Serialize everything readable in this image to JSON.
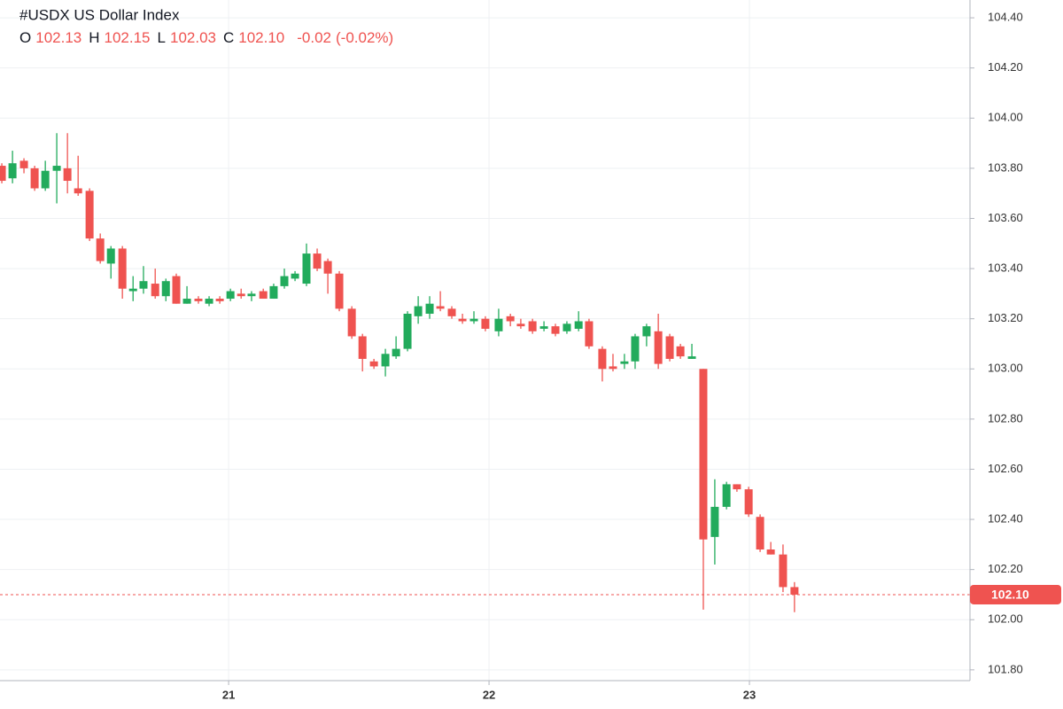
{
  "header": {
    "title": "#USDX US Dollar Index",
    "ohlc": [
      {
        "name": "O",
        "value": "102.13"
      },
      {
        "name": "H",
        "value": "102.15"
      },
      {
        "name": "L",
        "value": "102.03"
      },
      {
        "name": "C",
        "value": "102.10"
      }
    ],
    "change": "-0.02",
    "change_percent": "(-0.02%)"
  },
  "chart_data": {
    "type": "candlestick",
    "up_color": "#22ab5c",
    "down_color": "#ef5350",
    "grid": true,
    "x": [
      20.129,
      20.17,
      20.214,
      20.255,
      20.296,
      20.34,
      20.381,
      20.422,
      20.466,
      20.507,
      20.548,
      20.592,
      20.633,
      20.673,
      20.718,
      20.759,
      20.799,
      20.84,
      20.884,
      20.925,
      20.966,
      21.007,
      21.048,
      21.088,
      21.133,
      21.173,
      21.214,
      21.255,
      21.299,
      21.34,
      21.381,
      21.425,
      21.473,
      21.514,
      21.558,
      21.602,
      21.643,
      21.687,
      21.728,
      21.772,
      21.813,
      21.857,
      21.898,
      21.942,
      21.986,
      22.037,
      22.082,
      22.122,
      22.167,
      22.211,
      22.255,
      22.299,
      22.344,
      22.384,
      22.435,
      22.476,
      22.52,
      22.561,
      22.605,
      22.65,
      22.694,
      22.735,
      22.779,
      22.823,
      22.867,
      22.912,
      22.952,
      22.997,
      23.041,
      23.082,
      23.129,
      23.173
    ],
    "open": [
      103.81,
      103.76,
      103.83,
      103.8,
      103.72,
      103.79,
      103.8,
      103.72,
      103.71,
      103.52,
      103.42,
      103.48,
      103.31,
      103.32,
      103.34,
      103.29,
      103.37,
      103.26,
      103.28,
      103.26,
      103.28,
      103.28,
      103.3,
      103.29,
      103.31,
      103.28,
      103.33,
      103.36,
      103.34,
      103.46,
      103.43,
      103.38,
      103.24,
      103.13,
      103.03,
      103.01,
      103.05,
      103.08,
      103.21,
      103.22,
      103.25,
      103.24,
      103.2,
      103.19,
      103.2,
      103.15,
      103.21,
      103.18,
      103.19,
      103.16,
      103.17,
      103.15,
      103.16,
      103.19,
      103.08,
      103.01,
      103.02,
      103.03,
      103.13,
      103.15,
      103.13,
      103.09,
      103.04,
      103.0,
      102.33,
      102.45,
      102.54,
      102.52,
      102.41,
      102.28,
      102.26,
      102.13
    ],
    "high": [
      103.82,
      103.87,
      103.84,
      103.81,
      103.83,
      103.94,
      103.94,
      103.85,
      103.72,
      103.54,
      103.49,
      103.49,
      103.37,
      103.41,
      103.4,
      103.36,
      103.38,
      103.33,
      103.29,
      103.29,
      103.29,
      103.32,
      103.32,
      103.31,
      103.32,
      103.34,
      103.4,
      103.39,
      103.5,
      103.48,
      103.44,
      103.39,
      103.25,
      103.14,
      103.04,
      103.08,
      103.13,
      103.23,
      103.29,
      103.29,
      103.31,
      103.25,
      103.22,
      103.23,
      103.21,
      103.24,
      103.22,
      103.2,
      103.2,
      103.19,
      103.18,
      103.19,
      103.23,
      103.2,
      103.09,
      103.06,
      103.06,
      103.14,
      103.18,
      103.22,
      103.14,
      103.1,
      103.1,
      103.0,
      102.56,
      102.55,
      102.54,
      102.53,
      102.42,
      102.31,
      102.3,
      102.15
    ],
    "low": [
      103.74,
      103.74,
      103.78,
      103.71,
      103.71,
      103.66,
      103.7,
      103.69,
      103.51,
      103.42,
      103.36,
      103.28,
      103.27,
      103.3,
      103.28,
      103.27,
      103.26,
      103.26,
      103.26,
      103.25,
      103.26,
      103.27,
      103.28,
      103.27,
      103.28,
      103.28,
      103.32,
      103.35,
      103.33,
      103.39,
      103.3,
      103.23,
      103.12,
      102.99,
      103.0,
      102.97,
      103.04,
      103.07,
      103.18,
      103.2,
      103.23,
      103.2,
      103.18,
      103.18,
      103.15,
      103.13,
      103.17,
      103.16,
      103.14,
      103.15,
      103.13,
      103.14,
      103.15,
      103.08,
      102.95,
      102.99,
      103.0,
      103.0,
      103.09,
      103.0,
      103.03,
      103.04,
      103.04,
      102.04,
      102.22,
      102.44,
      102.51,
      102.41,
      102.27,
      102.26,
      102.11,
      102.03
    ],
    "close": [
      103.75,
      103.82,
      103.8,
      103.72,
      103.79,
      103.81,
      103.75,
      103.7,
      103.52,
      103.43,
      103.48,
      103.32,
      103.32,
      103.35,
      103.29,
      103.35,
      103.26,
      103.28,
      103.27,
      103.28,
      103.27,
      103.31,
      103.29,
      103.3,
      103.28,
      103.33,
      103.37,
      103.38,
      103.46,
      103.4,
      103.38,
      103.24,
      103.13,
      103.04,
      103.01,
      103.06,
      103.08,
      103.22,
      103.25,
      103.26,
      103.24,
      103.21,
      103.19,
      103.2,
      103.16,
      103.2,
      103.19,
      103.17,
      103.15,
      103.17,
      103.14,
      103.18,
      103.19,
      103.09,
      103.0,
      103.0,
      103.03,
      103.13,
      103.17,
      103.02,
      103.04,
      103.05,
      103.05,
      102.32,
      102.45,
      102.54,
      102.52,
      102.42,
      102.28,
      102.26,
      102.13,
      102.1
    ],
    "last_label": "102.10",
    "xlim": [
      20.122,
      23.847
    ],
    "xticks": [
      21,
      22,
      23
    ],
    "ylim": [
      101.757,
      104.471
    ],
    "yticks": [
      {
        "value": 101.8,
        "label": "101.80"
      },
      {
        "value": 102.0,
        "label": "102.00"
      },
      {
        "value": 102.2,
        "label": "102.20"
      },
      {
        "value": 102.4,
        "label": "102.40"
      },
      {
        "value": 102.6,
        "label": "102.60"
      },
      {
        "value": 102.8,
        "label": "102.80"
      },
      {
        "value": 103.0,
        "label": "103.00"
      },
      {
        "value": 103.2,
        "label": "103.20"
      },
      {
        "value": 103.4,
        "label": "103.40"
      },
      {
        "value": 103.6,
        "label": "103.60"
      },
      {
        "value": 103.8,
        "label": "103.80"
      },
      {
        "value": 104.0,
        "label": "104.00"
      },
      {
        "value": 104.2,
        "label": "104.20"
      },
      {
        "value": 104.4,
        "label": "104.40"
      }
    ]
  }
}
